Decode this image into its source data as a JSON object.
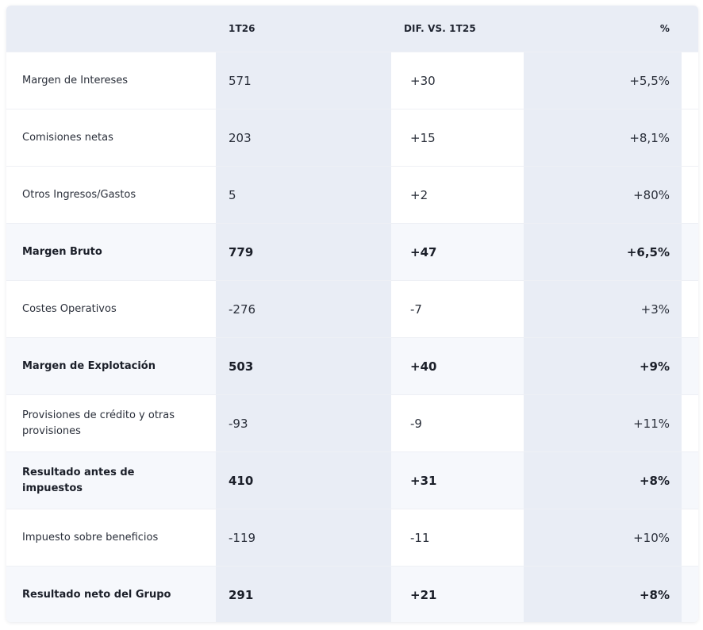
{
  "table": {
    "headers": [
      "",
      "1T26",
      "DIF. VS. 1T25",
      "%"
    ],
    "rows": [
      {
        "label": "Margen de Intereses",
        "v1": "571",
        "v2": "+30",
        "v3": "+5,5%",
        "bold": false
      },
      {
        "label": "Comisiones netas",
        "v1": "203",
        "v2": "+15",
        "v3": "+8,1%",
        "bold": false
      },
      {
        "label": "Otros Ingresos/Gastos",
        "v1": "5",
        "v2": "+2",
        "v3": "+80%",
        "bold": false
      },
      {
        "label": "Margen Bruto",
        "v1": "779",
        "v2": "+47",
        "v3": "+6,5%",
        "bold": true
      },
      {
        "label": "Costes Operativos",
        "v1": "-276",
        "v2": "-7",
        "v3": "+3%",
        "bold": false
      },
      {
        "label": "Margen de Explotación",
        "v1": "503",
        "v2": "+40",
        "v3": "+9%",
        "bold": true
      },
      {
        "label": "Provisiones de crédito y otras provisiones",
        "v1": "-93",
        "v2": "-9",
        "v3": "+11%",
        "bold": false
      },
      {
        "label": "Resultado antes de impuestos",
        "v1": "410",
        "v2": "+31",
        "v3": "+8%",
        "bold": true
      },
      {
        "label": "Impuesto sobre beneficios",
        "v1": "-119",
        "v2": "-11",
        "v3": "+10%",
        "bold": false
      },
      {
        "label": "Resultado neto del Grupo",
        "v1": "291",
        "v2": "+21",
        "v3": "+8%",
        "bold": true
      }
    ]
  }
}
